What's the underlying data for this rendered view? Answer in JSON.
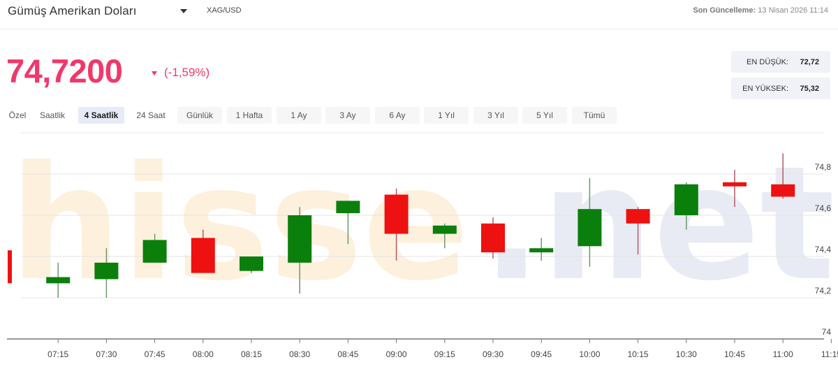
{
  "header": {
    "title": "Gümüş Amerikan Doları",
    "symbol": "XAG/USD",
    "updated_label": "Son Güncelleme:",
    "updated_value": "13 Nisan 2026 11:14"
  },
  "quote": {
    "price": "74,7200",
    "change": "(-1,59%)",
    "direction": "down",
    "color": "#f0386b"
  },
  "stats": {
    "low_label": "EN DÜŞÜK:",
    "low_value": "72,72",
    "high_label": "EN YÜKSEK:",
    "high_value": "75,32"
  },
  "ranges": {
    "selected": "4 Saatlik",
    "items": [
      {
        "label": "Özel"
      },
      {
        "label": "Saatlik"
      },
      {
        "label": "4 Saatlik"
      },
      {
        "label": "24 Saat"
      },
      {
        "label": "Günlük"
      },
      {
        "label": "1 Hafta"
      },
      {
        "label": "1 Ay"
      },
      {
        "label": "3 Ay"
      },
      {
        "label": "6 Ay"
      },
      {
        "label": "1 Yıl"
      },
      {
        "label": "3 Yıl"
      },
      {
        "label": "5 Yıl"
      },
      {
        "label": "Tümü"
      }
    ]
  },
  "watermark": {
    "left": "hisse",
    "right": ".net",
    "left_color": "#fdf0dc",
    "right_color": "#e8ebf3"
  },
  "chart_data": {
    "type": "candlestick",
    "title": "Gümüş Amerikan Doları (XAG/USD)",
    "xlabel": "",
    "ylabel": "",
    "ylim": [
      74.0,
      75.0
    ],
    "yticks": [
      "74",
      "74,2",
      "74,4",
      "74,6",
      "74,8"
    ],
    "xticks": [
      "07:15",
      "07:30",
      "07:45",
      "08:00",
      "08:15",
      "08:30",
      "08:45",
      "09:00",
      "09:15",
      "09:30",
      "09:45",
      "10:00",
      "10:15",
      "10:30",
      "10:45",
      "11:00",
      "11:15"
    ],
    "grid": true,
    "up_color": "#0b7f0b",
    "down_color": "#ee1111",
    "candles": [
      {
        "time": "07:00",
        "open": 74.43,
        "high": 74.43,
        "low": 74.27,
        "close": 74.27
      },
      {
        "time": "07:15",
        "open": 74.27,
        "high": 74.37,
        "low": 74.2,
        "close": 74.3
      },
      {
        "time": "07:30",
        "open": 74.29,
        "high": 74.44,
        "low": 74.2,
        "close": 74.37
      },
      {
        "time": "07:45",
        "open": 74.37,
        "high": 74.51,
        "low": 74.37,
        "close": 74.48
      },
      {
        "time": "08:00",
        "open": 74.49,
        "high": 74.53,
        "low": 74.32,
        "close": 74.32
      },
      {
        "time": "08:15",
        "open": 74.33,
        "high": 74.4,
        "low": 74.32,
        "close": 74.4
      },
      {
        "time": "08:30",
        "open": 74.37,
        "high": 74.64,
        "low": 74.22,
        "close": 74.6
      },
      {
        "time": "08:45",
        "open": 74.61,
        "high": 74.67,
        "low": 74.46,
        "close": 74.67
      },
      {
        "time": "09:00",
        "open": 74.7,
        "high": 74.73,
        "low": 74.38,
        "close": 74.51
      },
      {
        "time": "09:15",
        "open": 74.51,
        "high": 74.56,
        "low": 74.44,
        "close": 74.55
      },
      {
        "time": "09:30",
        "open": 74.56,
        "high": 74.59,
        "low": 74.39,
        "close": 74.42
      },
      {
        "time": "09:45",
        "open": 74.42,
        "high": 74.49,
        "low": 74.38,
        "close": 74.44
      },
      {
        "time": "10:00",
        "open": 74.45,
        "high": 74.78,
        "low": 74.35,
        "close": 74.63
      },
      {
        "time": "10:15",
        "open": 74.63,
        "high": 74.64,
        "low": 74.41,
        "close": 74.56
      },
      {
        "time": "10:30",
        "open": 74.6,
        "high": 74.76,
        "low": 74.53,
        "close": 74.75
      },
      {
        "time": "10:45",
        "open": 74.76,
        "high": 74.82,
        "low": 74.64,
        "close": 74.74
      },
      {
        "time": "11:00",
        "open": 74.75,
        "high": 74.9,
        "low": 74.68,
        "close": 74.69
      }
    ]
  }
}
